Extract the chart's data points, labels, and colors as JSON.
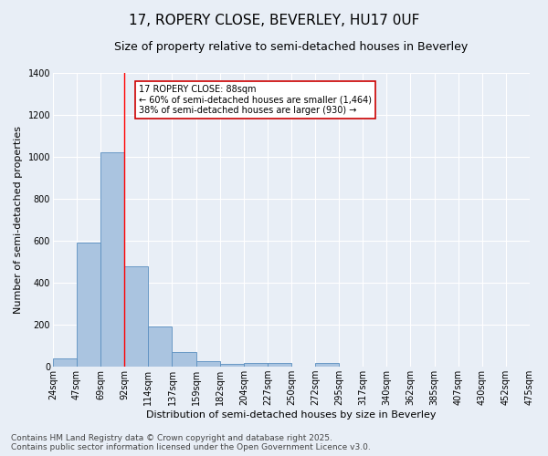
{
  "title": "17, ROPERY CLOSE, BEVERLEY, HU17 0UF",
  "subtitle": "Size of property relative to semi-detached houses in Beverley",
  "xlabel": "Distribution of semi-detached houses by size in Beverley",
  "ylabel": "Number of semi-detached properties",
  "bar_values": [
    40,
    590,
    1020,
    480,
    190,
    70,
    25,
    15,
    20,
    20,
    0,
    20,
    0,
    0,
    0,
    0,
    0,
    0,
    0,
    0
  ],
  "categories": [
    "24sqm",
    "47sqm",
    "69sqm",
    "92sqm",
    "114sqm",
    "137sqm",
    "159sqm",
    "182sqm",
    "204sqm",
    "227sqm",
    "250sqm",
    "272sqm",
    "295sqm",
    "317sqm",
    "340sqm",
    "362sqm",
    "385sqm",
    "407sqm",
    "430sqm",
    "452sqm",
    "475sqm"
  ],
  "bar_color": "#aac4e0",
  "bar_edge_color": "#5a8fc0",
  "bg_color": "#e8eef6",
  "grid_color": "#ffffff",
  "red_line_x": 2.5,
  "annotation_title": "17 ROPERY CLOSE: 88sqm",
  "annotation_line1": "← 60% of semi-detached houses are smaller (1,464)",
  "annotation_line2": "38% of semi-detached houses are larger (930) →",
  "annotation_box_color": "#ffffff",
  "annotation_box_edge": "#cc0000",
  "ylim": [
    0,
    1400
  ],
  "yticks": [
    0,
    200,
    400,
    600,
    800,
    1000,
    1200,
    1400
  ],
  "footer_line1": "Contains HM Land Registry data © Crown copyright and database right 2025.",
  "footer_line2": "Contains public sector information licensed under the Open Government Licence v3.0.",
  "title_fontsize": 11,
  "subtitle_fontsize": 9,
  "footer_fontsize": 6.5,
  "ylabel_fontsize": 8,
  "xlabel_fontsize": 8,
  "tick_fontsize": 7,
  "annot_fontsize": 7
}
